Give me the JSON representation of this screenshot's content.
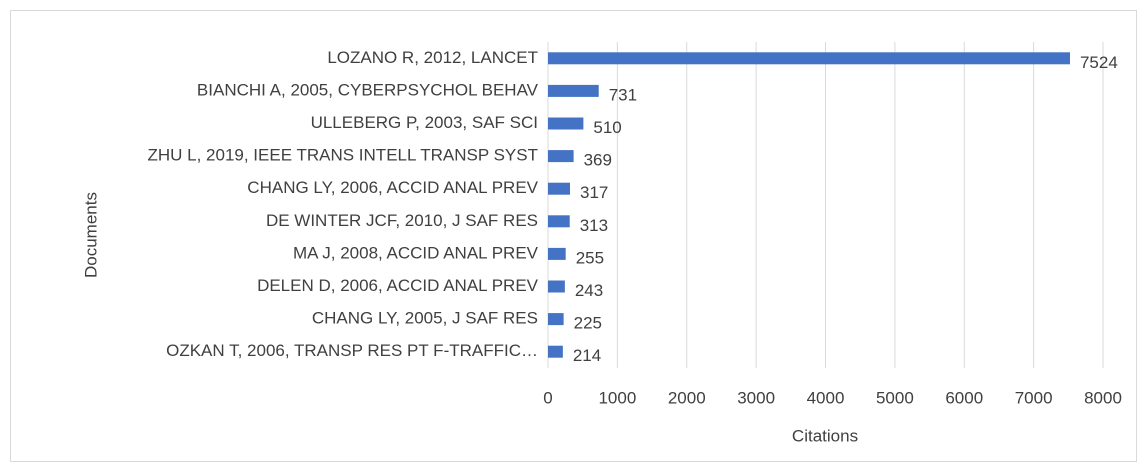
{
  "chart_data": {
    "type": "bar",
    "orientation": "horizontal",
    "categories": [
      "LOZANO R, 2012, LANCET",
      "BIANCHI A, 2005, CYBERPSYCHOL BEHAV",
      "ULLEBERG P, 2003, SAF SCI",
      "ZHU L, 2019, IEEE TRANS INTELL TRANSP SYST",
      "CHANG LY, 2006, ACCID ANAL PREV",
      "DE WINTER JCF, 2010, J SAF RES",
      "MA J, 2008, ACCID ANAL PREV",
      "DELEN D, 2006, ACCID ANAL PREV",
      "CHANG LY, 2005, J SAF RES",
      "OZKAN T, 2006, TRANSP RES PT F-TRAFFIC…"
    ],
    "values": [
      7524,
      731,
      510,
      369,
      317,
      313,
      255,
      243,
      225,
      214
    ],
    "color": "#4472c4",
    "xlabel": "Citations",
    "ylabel": "Documents",
    "xlim": [
      0,
      8000
    ],
    "xticks": [
      0,
      1000,
      2000,
      3000,
      4000,
      5000,
      6000,
      7000,
      8000
    ],
    "grid": true
  }
}
